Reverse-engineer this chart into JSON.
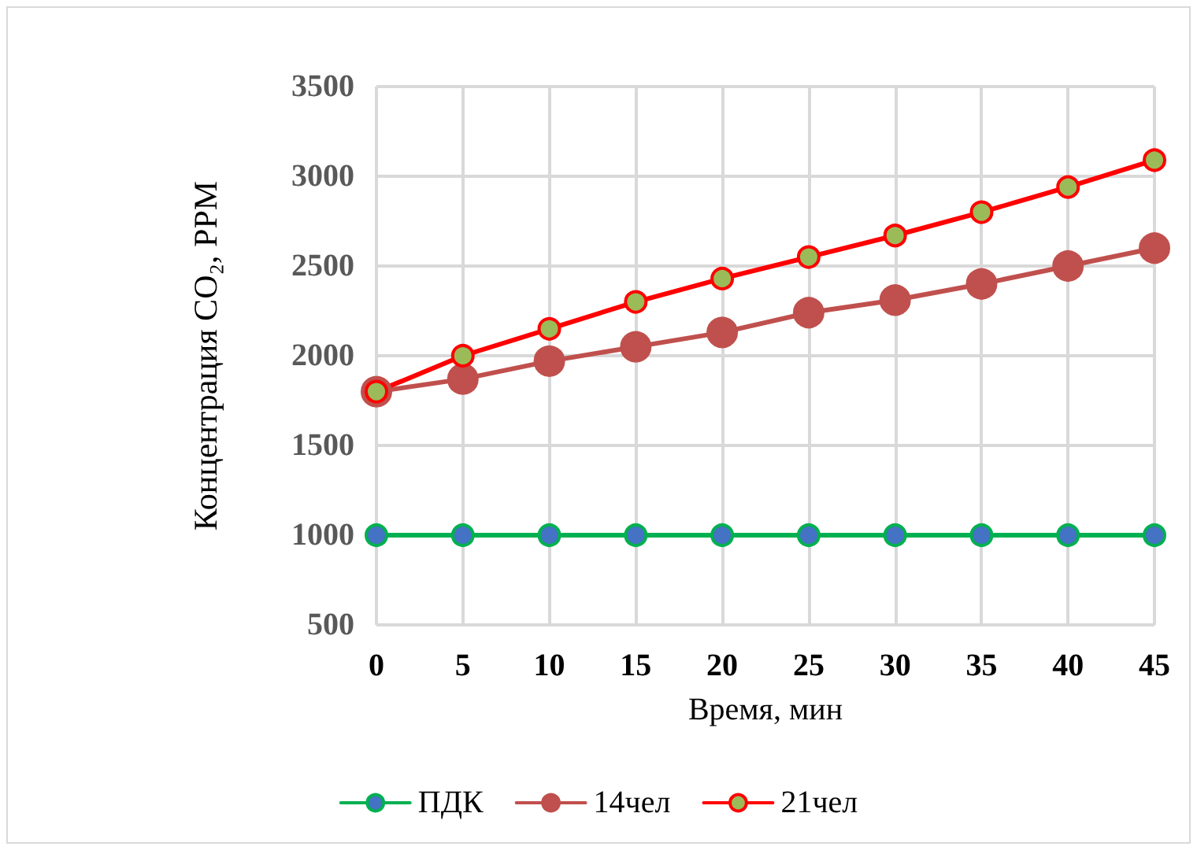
{
  "chart_data": {
    "type": "line",
    "xlabel": "Время, мин",
    "ylabel": "Концентрация CO₂, PPM",
    "x": [
      0,
      5,
      10,
      15,
      20,
      25,
      30,
      35,
      40,
      45
    ],
    "xlim": [
      0,
      45
    ],
    "xticks": [
      0,
      5,
      10,
      15,
      20,
      25,
      30,
      35,
      40,
      45
    ],
    "ylim": [
      500,
      3500
    ],
    "yticks": [
      500,
      1000,
      1500,
      2000,
      2500,
      3000,
      3500
    ],
    "grid": true,
    "legend": "bottom",
    "marker": "circle",
    "line_style": "solid",
    "series": [
      {
        "name": "ПДК",
        "color": "#00b050",
        "colors": [
          "#4472c4",
          "#4472c4",
          "#4472c4",
          "#4472c4",
          "#4472c4",
          "#4472c4",
          "#4472c4",
          "#4472c4",
          "#4472c4",
          "#4472c4"
        ],
        "values": [
          1000,
          1000,
          1000,
          1000,
          1000,
          1000,
          1000,
          1000,
          1000,
          1000
        ]
      },
      {
        "name": "14чел",
        "color": "#c0504d",
        "colors": [
          "#c0504d",
          "#c0504d",
          "#c0504d",
          "#c0504d",
          "#c0504d",
          "#c0504d",
          "#c0504d",
          "#c0504d",
          "#c0504d",
          "#c0504d"
        ],
        "values": [
          1800,
          1870,
          1970,
          2050,
          2130,
          2240,
          2310,
          2400,
          2500,
          2600
        ]
      },
      {
        "name": "21чел",
        "color": "#ff0000",
        "colors": [
          "#9bbb59",
          "#9bbb59",
          "#9bbb59",
          "#9bbb59",
          "#9bbb59",
          "#9bbb59",
          "#9bbb59",
          "#9bbb59",
          "#9bbb59",
          "#9bbb59"
        ],
        "values": [
          1800,
          2000,
          2150,
          2300,
          2430,
          2550,
          2670,
          2800,
          2940,
          3090
        ]
      }
    ]
  }
}
